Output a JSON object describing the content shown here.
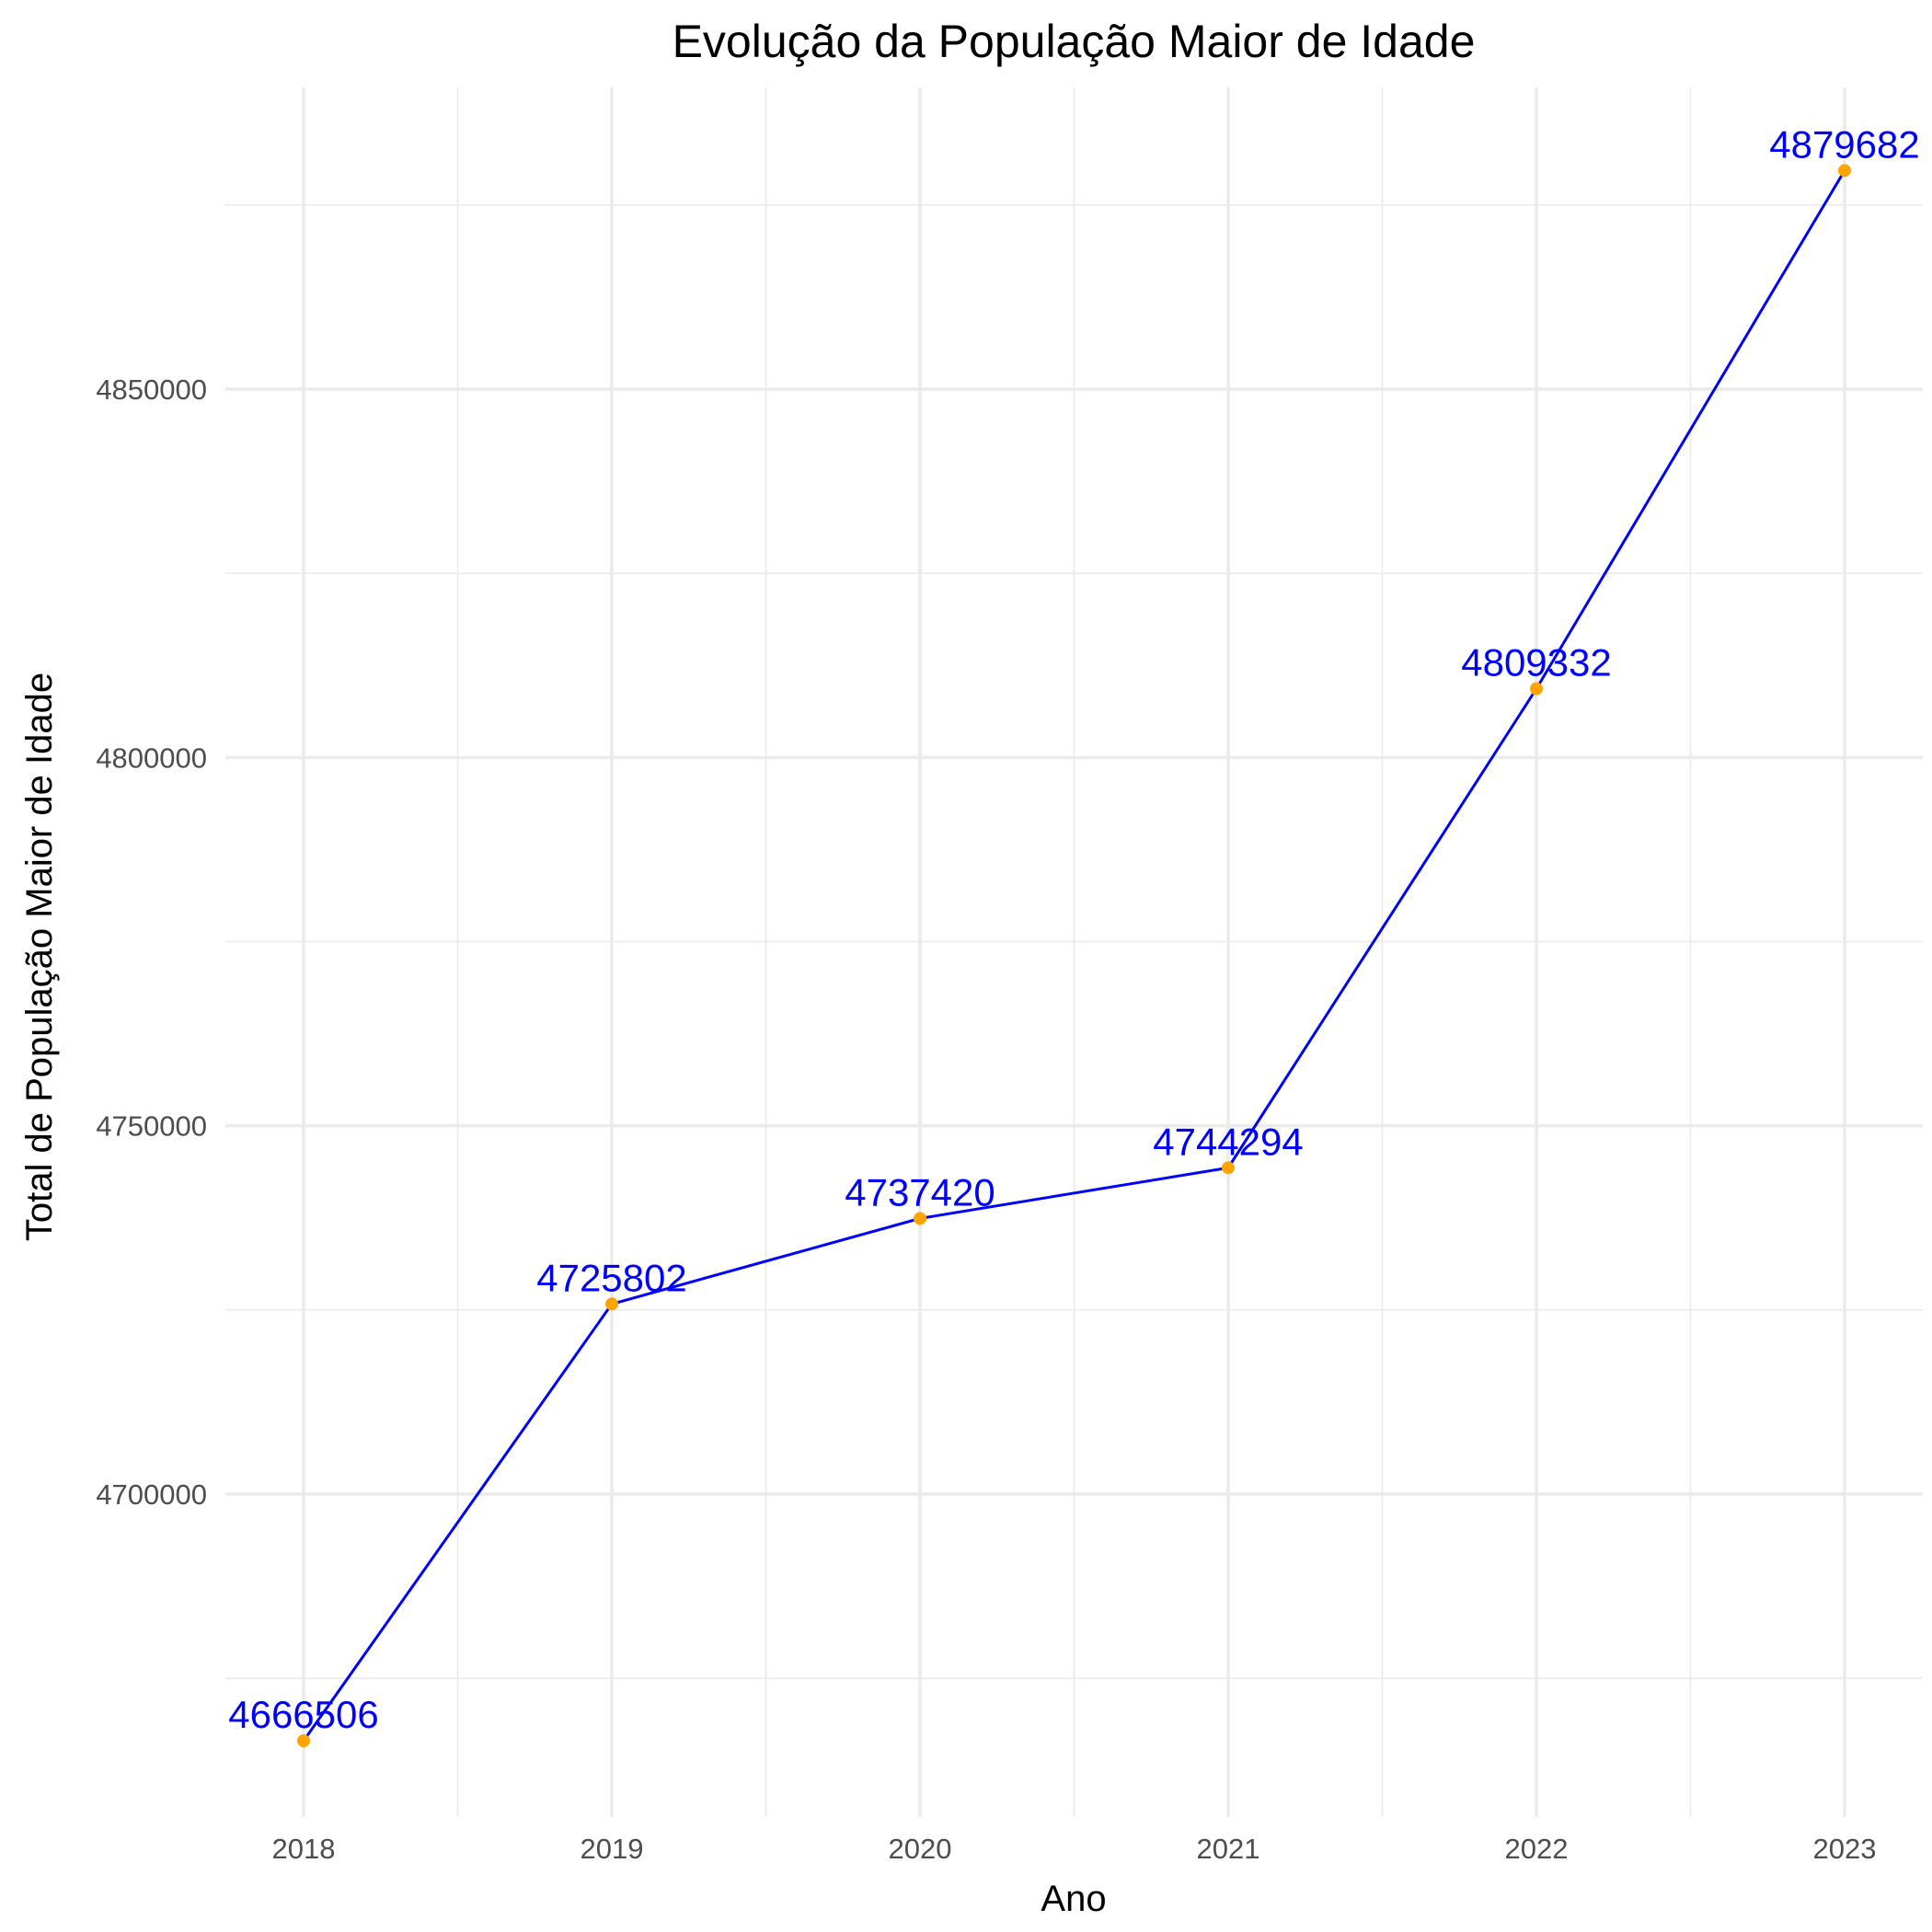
{
  "chart_data": {
    "type": "line",
    "title": "Evolução da População Maior de Idade",
    "xlabel": "Ano",
    "ylabel": "Total de População Maior de Idade",
    "x": [
      "2018",
      "2019",
      "2020",
      "2021",
      "2022",
      "2023"
    ],
    "values": [
      4666506,
      4725802,
      4737420,
      4744294,
      4809332,
      4879682
    ],
    "data_labels": [
      "4666506",
      "4725802",
      "4737420",
      "4744294",
      "4809332",
      "4879682"
    ],
    "yticks": [
      4700000,
      4750000,
      4800000,
      4850000
    ],
    "ytick_labels": [
      "4700000",
      "4750000",
      "4800000",
      "4850000"
    ],
    "ylim": [
      4656000,
      4890000
    ],
    "grid": true,
    "legend": "none",
    "colors": {
      "line": "#0000ff",
      "point": "#ffa500",
      "label": "#0000ff"
    }
  }
}
